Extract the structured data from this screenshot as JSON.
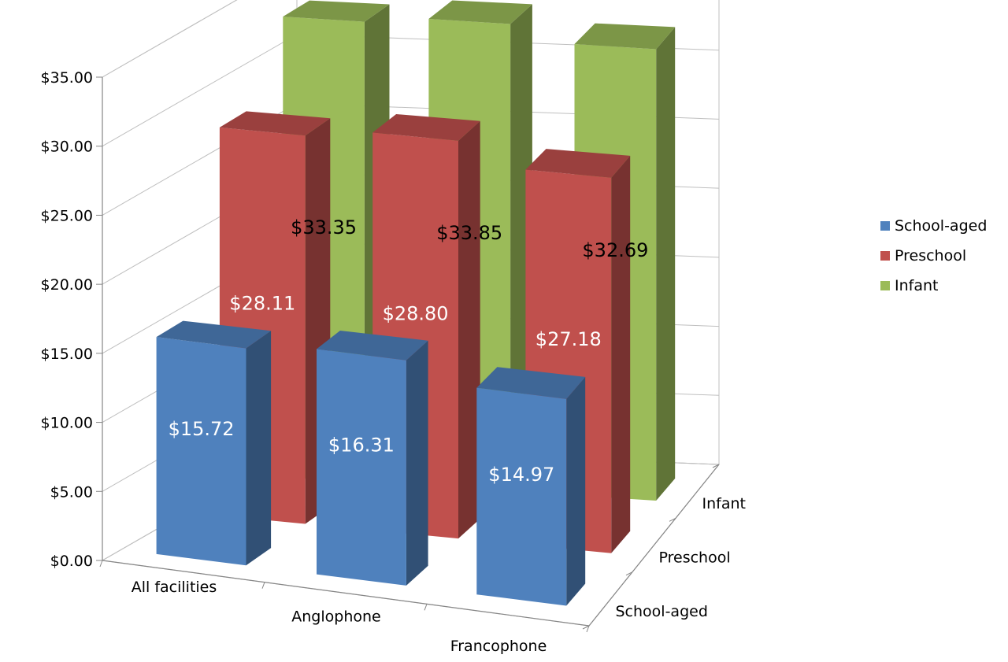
{
  "chart_data": {
    "type": "bar",
    "variant": "3d-column",
    "title": "",
    "xlabel": "",
    "ylabel": "",
    "ylim": [
      0,
      35
    ],
    "y_ticks": [
      "$0.00",
      "$5.00",
      "$10.00",
      "$15.00",
      "$20.00",
      "$25.00",
      "$30.00",
      "$35.00"
    ],
    "y_tick_values": [
      0,
      5,
      10,
      15,
      20,
      25,
      30,
      35
    ],
    "categories": [
      "All facilities",
      "Anglophone",
      "Francophone"
    ],
    "depth_labels": [
      "Infant",
      "Preschool",
      "School-aged"
    ],
    "grid": true,
    "legend_position": "right",
    "series": [
      {
        "name": "School-aged",
        "values": [
          15.72,
          16.31,
          14.97
        ],
        "labels": [
          "$15.72",
          "$16.31",
          "$14.97"
        ],
        "color": "#4F81BD",
        "label_color": "#FFFFFF"
      },
      {
        "name": "Preschool",
        "values": [
          28.11,
          28.8,
          27.18
        ],
        "labels": [
          "$28.11",
          "$28.80",
          "$27.18"
        ],
        "color": "#C0504D",
        "label_color": "#FFFFFF"
      },
      {
        "name": "Infant",
        "values": [
          33.35,
          33.85,
          32.69
        ],
        "labels": [
          "$33.35",
          "$33.85",
          "$32.69"
        ],
        "color": "#9BBB59",
        "label_color": "#000000"
      }
    ]
  }
}
